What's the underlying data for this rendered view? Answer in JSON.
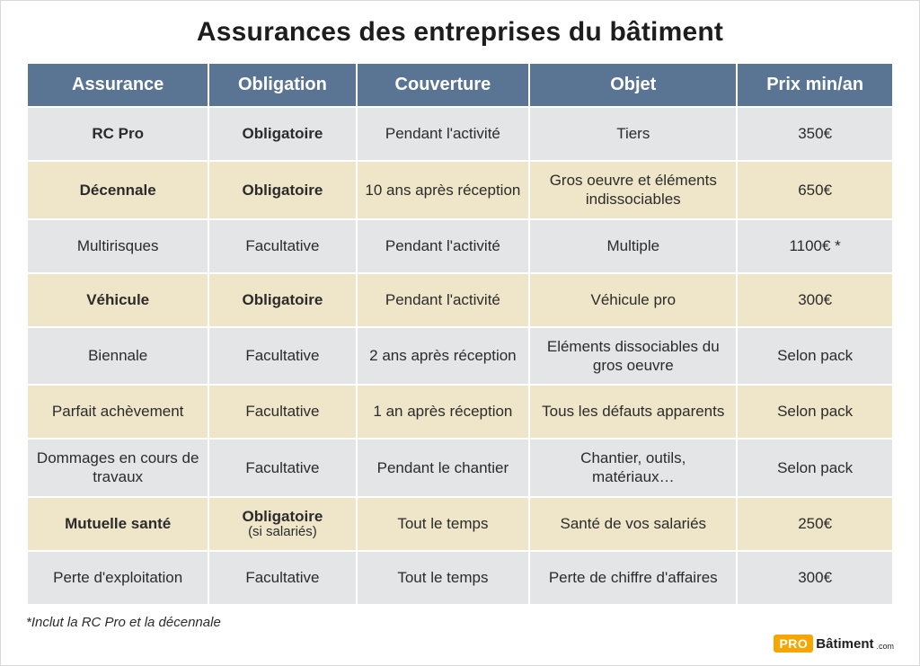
{
  "title": "Assurances des entreprises du bâtiment",
  "colors": {
    "header_bg": "#5a7594",
    "header_fg": "#ffffff",
    "row_gray": "#e4e5e7",
    "row_cream": "#efe6c9",
    "logo_orange": "#f7a500",
    "text": "#2b2b2b"
  },
  "table": {
    "col_widths_pct": [
      21,
      17,
      20,
      24,
      18
    ],
    "columns": [
      "Assurance",
      "Obligation",
      "Couverture",
      "Objet",
      "Prix min/an"
    ],
    "rows": [
      {
        "band": "gray",
        "bold": true,
        "assurance": "RC Pro",
        "obligation": "Obligatoire",
        "obligation_sub": "",
        "couverture": "Pendant l'activité",
        "objet": "Tiers",
        "prix": "350€"
      },
      {
        "band": "cream",
        "bold": true,
        "assurance": "Décennale",
        "obligation": "Obligatoire",
        "obligation_sub": "",
        "couverture": "10 ans après réception",
        "objet": "Gros oeuvre et éléments indissociables",
        "prix": "650€"
      },
      {
        "band": "gray",
        "bold": false,
        "assurance": "Multirisques",
        "obligation": "Facultative",
        "obligation_sub": "",
        "couverture": "Pendant l'activité",
        "objet": "Multiple",
        "prix": "1100€ *"
      },
      {
        "band": "cream",
        "bold": true,
        "assurance": "Véhicule",
        "obligation": "Obligatoire",
        "obligation_sub": "",
        "couverture": "Pendant l'activité",
        "objet": "Véhicule pro",
        "prix": "300€"
      },
      {
        "band": "gray",
        "bold": false,
        "assurance": "Biennale",
        "obligation": "Facultative",
        "obligation_sub": "",
        "couverture": "2 ans après réception",
        "objet": "Eléments dissociables du gros oeuvre",
        "prix": "Selon pack"
      },
      {
        "band": "cream",
        "bold": false,
        "assurance": "Parfait achèvement",
        "obligation": "Facultative",
        "obligation_sub": "",
        "couverture": "1 an après réception",
        "objet": "Tous les défauts apparents",
        "prix": "Selon pack"
      },
      {
        "band": "gray",
        "bold": false,
        "assurance": "Dommages en cours de travaux",
        "obligation": "Facultative",
        "obligation_sub": "",
        "couverture": "Pendant le chantier",
        "objet": "Chantier, outils, matériaux…",
        "prix": "Selon pack"
      },
      {
        "band": "cream",
        "bold": true,
        "assurance": "Mutuelle santé",
        "obligation": "Obligatoire",
        "obligation_sub": "(si salariés)",
        "couverture": "Tout le temps",
        "objet": "Santé de vos salariés",
        "prix": "250€"
      },
      {
        "band": "gray",
        "bold": false,
        "assurance": "Perte d'exploitation",
        "obligation": "Facultative",
        "obligation_sub": "",
        "couverture": "Tout le temps",
        "objet": "Perte de chiffre d'affaires",
        "prix": "300€"
      }
    ]
  },
  "footnote": "*Inclut la RC Pro et la décennale",
  "logo": {
    "pro": "PRO",
    "bat": "Bâtiment",
    "dotcom": ".com"
  }
}
